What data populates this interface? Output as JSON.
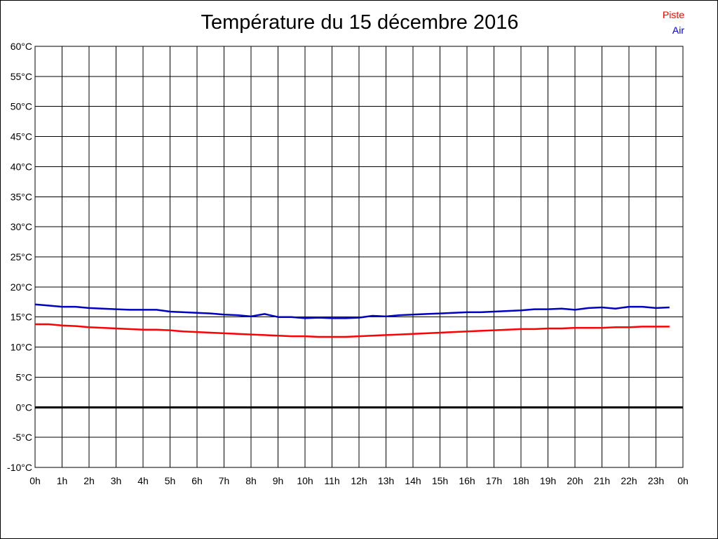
{
  "chart_data": {
    "type": "line",
    "title": "Température du 15 décembre 2016",
    "xlabel": "",
    "ylabel": "",
    "ylim": [
      -10,
      60
    ],
    "xlim": [
      0,
      24
    ],
    "grid": true,
    "legend_position": "top-right",
    "y_ticks": [
      "-10°C",
      "-5°C",
      "0°C",
      "5°C",
      "10°C",
      "15°C",
      "20°C",
      "25°C",
      "30°C",
      "35°C",
      "40°C",
      "45°C",
      "50°C",
      "55°C",
      "60°C"
    ],
    "x_ticks": [
      "0h",
      "1h",
      "2h",
      "3h",
      "4h",
      "5h",
      "6h",
      "7h",
      "8h",
      "9h",
      "10h",
      "11h",
      "12h",
      "13h",
      "14h",
      "15h",
      "16h",
      "17h",
      "18h",
      "19h",
      "20h",
      "21h",
      "22h",
      "23h",
      "0h"
    ],
    "series": [
      {
        "name": "Piste",
        "color": "#ff0000",
        "x": [
          0,
          0.5,
          1,
          1.5,
          2,
          2.5,
          3,
          3.5,
          4,
          4.5,
          5,
          5.5,
          6,
          6.5,
          7,
          7.5,
          8,
          8.5,
          9,
          9.5,
          10,
          10.5,
          11,
          11.5,
          12,
          12.5,
          13,
          13.5,
          14,
          14.5,
          15,
          15.5,
          16,
          16.5,
          17,
          17.5,
          18,
          18.5,
          19,
          19.5,
          20,
          20.5,
          21,
          21.5,
          22,
          22.5,
          23,
          23.5
        ],
        "values": [
          13.8,
          13.8,
          13.6,
          13.5,
          13.3,
          13.2,
          13.1,
          13.0,
          12.9,
          12.9,
          12.8,
          12.6,
          12.5,
          12.4,
          12.3,
          12.2,
          12.1,
          12.0,
          11.9,
          11.8,
          11.8,
          11.7,
          11.7,
          11.7,
          11.8,
          11.9,
          12.0,
          12.1,
          12.2,
          12.3,
          12.4,
          12.5,
          12.6,
          12.7,
          12.8,
          12.9,
          13.0,
          13.0,
          13.1,
          13.1,
          13.2,
          13.2,
          13.2,
          13.3,
          13.3,
          13.4,
          13.4,
          13.4
        ]
      },
      {
        "name": "Air",
        "color": "#0000c0",
        "x": [
          0,
          0.5,
          1,
          1.5,
          2,
          2.5,
          3,
          3.5,
          4,
          4.5,
          5,
          5.5,
          6,
          6.5,
          7,
          7.5,
          8,
          8.5,
          9,
          9.5,
          10,
          10.5,
          11,
          11.5,
          12,
          12.5,
          13,
          13.5,
          14,
          14.5,
          15,
          15.5,
          16,
          16.5,
          17,
          17.5,
          18,
          18.5,
          19,
          19.5,
          20,
          20.5,
          21,
          21.5,
          22,
          22.5,
          23,
          23.5
        ],
        "values": [
          17.1,
          16.9,
          16.7,
          16.7,
          16.5,
          16.4,
          16.3,
          16.2,
          16.2,
          16.2,
          15.9,
          15.8,
          15.7,
          15.6,
          15.4,
          15.3,
          15.1,
          15.5,
          15.0,
          15.0,
          14.8,
          14.9,
          14.8,
          14.8,
          14.9,
          15.2,
          15.1,
          15.3,
          15.4,
          15.5,
          15.6,
          15.7,
          15.8,
          15.8,
          15.9,
          16.0,
          16.1,
          16.3,
          16.3,
          16.4,
          16.2,
          16.5,
          16.6,
          16.4,
          16.7,
          16.7,
          16.5,
          16.6
        ]
      }
    ]
  }
}
